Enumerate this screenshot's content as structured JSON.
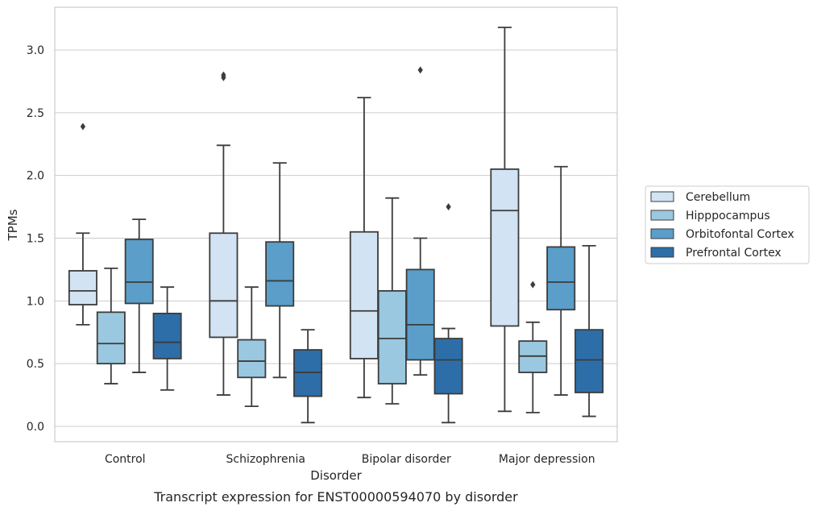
{
  "chart_data": {
    "type": "box",
    "title": "",
    "caption": "Transcript expression for ENST00000594070 by disorder",
    "xlabel": "Disorder",
    "ylabel": "TPMs",
    "ylim": [
      -0.12,
      3.35
    ],
    "yticks": [
      "0.0",
      "0.5",
      "1.0",
      "1.5",
      "2.0",
      "2.5",
      "3.0"
    ],
    "grid": "horizontal",
    "legend_position": "right",
    "categories": [
      "Control",
      "Schizophrenia",
      "Bipolar disorder",
      "Major depression"
    ],
    "series": [
      {
        "name": "Cerebellum",
        "color": "#d2e3f3",
        "boxes": [
          {
            "whisker_low": 0.81,
            "q1": 0.97,
            "median": 1.08,
            "q3": 1.24,
            "whisker_high": 1.54,
            "outliers": [
              2.39
            ]
          },
          {
            "whisker_low": 0.25,
            "q1": 0.71,
            "median": 1.0,
            "q3": 1.54,
            "whisker_high": 2.24,
            "outliers": [
              2.78,
              2.8
            ]
          },
          {
            "whisker_low": 0.23,
            "q1": 0.54,
            "median": 0.92,
            "q3": 1.55,
            "whisker_high": 2.62,
            "outliers": []
          },
          {
            "whisker_low": 0.12,
            "q1": 0.8,
            "median": 1.72,
            "q3": 2.05,
            "whisker_high": 3.18,
            "outliers": []
          }
        ]
      },
      {
        "name": "Hipppocampus",
        "color": "#9ac8e0",
        "boxes": [
          {
            "whisker_low": 0.34,
            "q1": 0.5,
            "median": 0.66,
            "q3": 0.91,
            "whisker_high": 1.26,
            "outliers": []
          },
          {
            "whisker_low": 0.16,
            "q1": 0.39,
            "median": 0.52,
            "q3": 0.69,
            "whisker_high": 1.11,
            "outliers": []
          },
          {
            "whisker_low": 0.18,
            "q1": 0.34,
            "median": 0.7,
            "q3": 1.08,
            "whisker_high": 1.82,
            "outliers": []
          },
          {
            "whisker_low": 0.11,
            "q1": 0.43,
            "median": 0.56,
            "q3": 0.68,
            "whisker_high": 0.83,
            "outliers": [
              1.13
            ]
          }
        ]
      },
      {
        "name": "Orbitofontal Cortex",
        "color": "#5a9ec9",
        "boxes": [
          {
            "whisker_low": 0.43,
            "q1": 0.98,
            "median": 1.15,
            "q3": 1.49,
            "whisker_high": 1.65,
            "outliers": []
          },
          {
            "whisker_low": 0.39,
            "q1": 0.96,
            "median": 1.16,
            "q3": 1.47,
            "whisker_high": 2.1,
            "outliers": []
          },
          {
            "whisker_low": 0.41,
            "q1": 0.53,
            "median": 0.81,
            "q3": 1.25,
            "whisker_high": 1.5,
            "outliers": [
              2.84
            ]
          },
          {
            "whisker_low": 0.25,
            "q1": 0.93,
            "median": 1.15,
            "q3": 1.43,
            "whisker_high": 2.07,
            "outliers": []
          }
        ]
      },
      {
        "name": "Prefrontal Cortex",
        "color": "#2d6ea8",
        "boxes": [
          {
            "whisker_low": 0.29,
            "q1": 0.54,
            "median": 0.67,
            "q3": 0.9,
            "whisker_high": 1.11,
            "outliers": []
          },
          {
            "whisker_low": 0.03,
            "q1": 0.24,
            "median": 0.43,
            "q3": 0.61,
            "whisker_high": 0.77,
            "outliers": []
          },
          {
            "whisker_low": 0.03,
            "q1": 0.26,
            "median": 0.53,
            "q3": 0.7,
            "whisker_high": 0.78,
            "outliers": [
              1.75
            ]
          },
          {
            "whisker_low": 0.08,
            "q1": 0.27,
            "median": 0.53,
            "q3": 0.77,
            "whisker_high": 1.44,
            "outliers": []
          }
        ]
      }
    ]
  }
}
